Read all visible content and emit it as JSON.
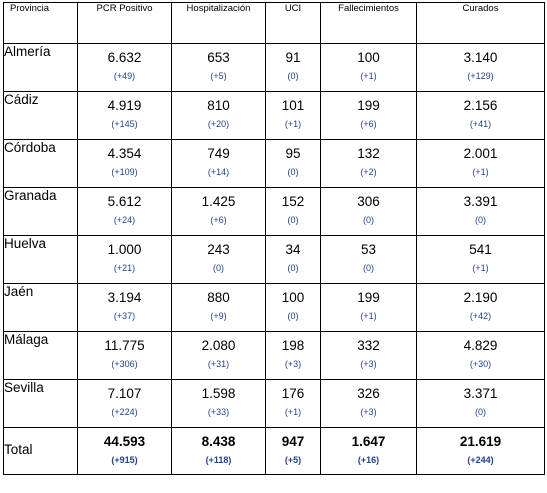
{
  "headers": [
    "Provincia",
    "PCR Positivo",
    "Hospitalización",
    "UCI",
    "Fallecimientos",
    "Curados"
  ],
  "rows": [
    {
      "provincia": "Almería",
      "cells": [
        {
          "value": "6.632",
          "delta": "(+49)"
        },
        {
          "value": "653",
          "delta": "(+5)"
        },
        {
          "value": "91",
          "delta": "(0)"
        },
        {
          "value": "100",
          "delta": "(+1)"
        },
        {
          "value": "3.140",
          "delta": "(+129)"
        }
      ]
    },
    {
      "provincia": "Cádiz",
      "cells": [
        {
          "value": "4.919",
          "delta": "(+145)"
        },
        {
          "value": "810",
          "delta": "(+20)"
        },
        {
          "value": "101",
          "delta": "(+1)"
        },
        {
          "value": "199",
          "delta": "(+6)"
        },
        {
          "value": "2.156",
          "delta": "(+41)"
        }
      ]
    },
    {
      "provincia": "Córdoba",
      "cells": [
        {
          "value": "4.354",
          "delta": "(+109)"
        },
        {
          "value": "749",
          "delta": "(+14)"
        },
        {
          "value": "95",
          "delta": "(0)"
        },
        {
          "value": "132",
          "delta": "(+2)"
        },
        {
          "value": "2.001",
          "delta": "(+1)"
        }
      ]
    },
    {
      "provincia": "Granada",
      "cells": [
        {
          "value": "5.612",
          "delta": "(+24)"
        },
        {
          "value": "1.425",
          "delta": "(+6)"
        },
        {
          "value": "152",
          "delta": "(0)"
        },
        {
          "value": "306",
          "delta": "(0)"
        },
        {
          "value": "3.391",
          "delta": "(0)"
        }
      ]
    },
    {
      "provincia": "Huelva",
      "cells": [
        {
          "value": "1.000",
          "delta": "(+21)"
        },
        {
          "value": "243",
          "delta": "(0)"
        },
        {
          "value": "34",
          "delta": "(0)"
        },
        {
          "value": "53",
          "delta": "(0)"
        },
        {
          "value": "541",
          "delta": "(+1)"
        }
      ]
    },
    {
      "provincia": "Jaén",
      "cells": [
        {
          "value": "3.194",
          "delta": "(+37)"
        },
        {
          "value": "880",
          "delta": "(+9)"
        },
        {
          "value": "100",
          "delta": "(0)"
        },
        {
          "value": "199",
          "delta": "(+1)"
        },
        {
          "value": "2.190",
          "delta": "(+42)"
        }
      ]
    },
    {
      "provincia": "Málaga",
      "cells": [
        {
          "value": "11.775",
          "delta": "(+306)"
        },
        {
          "value": "2.080",
          "delta": "(+31)"
        },
        {
          "value": "198",
          "delta": "(+3)"
        },
        {
          "value": "332",
          "delta": "(+3)"
        },
        {
          "value": "4.829",
          "delta": "(+30)"
        }
      ]
    },
    {
      "provincia": "Sevilla",
      "cells": [
        {
          "value": "7.107",
          "delta": "(+224)"
        },
        {
          "value": "1.598",
          "delta": "(+33)"
        },
        {
          "value": "176",
          "delta": "(+1)"
        },
        {
          "value": "326",
          "delta": "(+3)"
        },
        {
          "value": "3.371",
          "delta": "(0)"
        }
      ]
    }
  ],
  "total": {
    "label": "Total",
    "cells": [
      {
        "value": "44.593",
        "delta": "(+915)"
      },
      {
        "value": "8.438",
        "delta": "(+118)"
      },
      {
        "value": "947",
        "delta": "(+5)"
      },
      {
        "value": "1.647",
        "delta": "(+16)"
      },
      {
        "value": "21.619",
        "delta": "(+244)"
      }
    ]
  },
  "colors": {
    "delta": "#1f3f9a",
    "border": "#000000"
  }
}
